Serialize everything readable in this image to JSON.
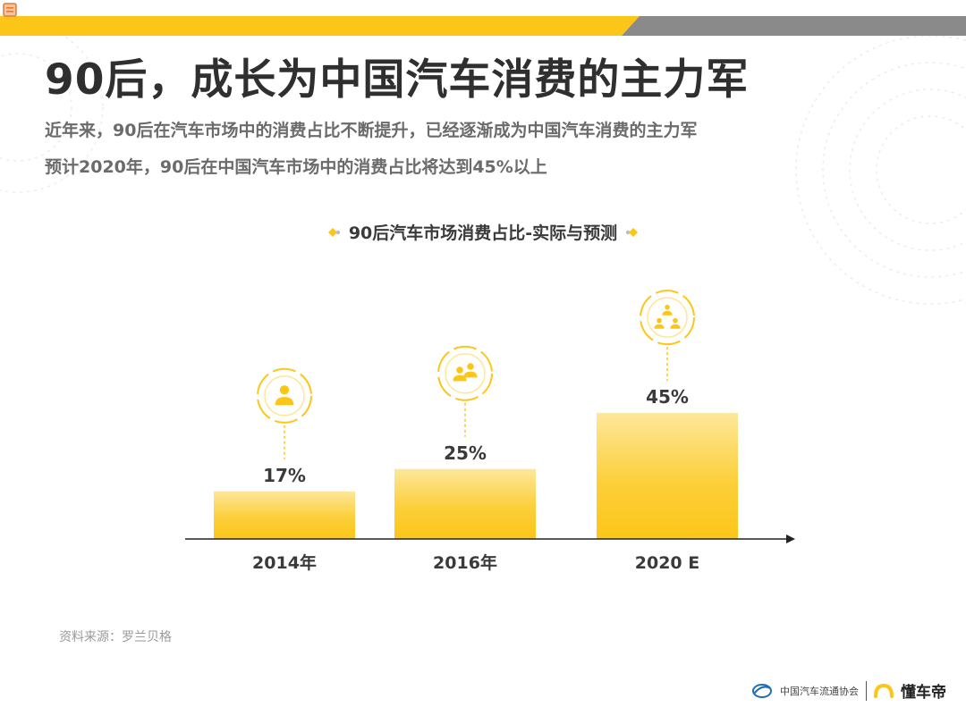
{
  "title": "90后，成长为中国汽车消费的主力军",
  "subtitle_lines": [
    "近年来，90后在汽车市场中的消费占比不断提升，已经逐渐成为中国汽车消费的主力军",
    "预计2020年，90后在中国汽车市场中的消费占比将达到45%以上"
  ],
  "chart_data": {
    "type": "bar",
    "title": "90后汽车市场消费占比-实际与预测",
    "categories": [
      "2014年",
      "2016年",
      "2020 E"
    ],
    "values": [
      17,
      25,
      45
    ],
    "value_labels": [
      "17%",
      "25%",
      "45%"
    ],
    "ylim": [
      0,
      50
    ],
    "grid": false,
    "icons": [
      "single-person-icon",
      "two-people-icon",
      "group-people-icon"
    ],
    "bar_color": "#fcc619"
  },
  "source": "资料来源：罗兰贝格",
  "footer": {
    "org": "中国汽车流通协会",
    "brand": "懂车帝"
  },
  "colors": {
    "accent": "#fcc619",
    "bar_light": "#fde79a",
    "gray_band": "#8a8a8a",
    "title_text": "#2f2f2f"
  }
}
